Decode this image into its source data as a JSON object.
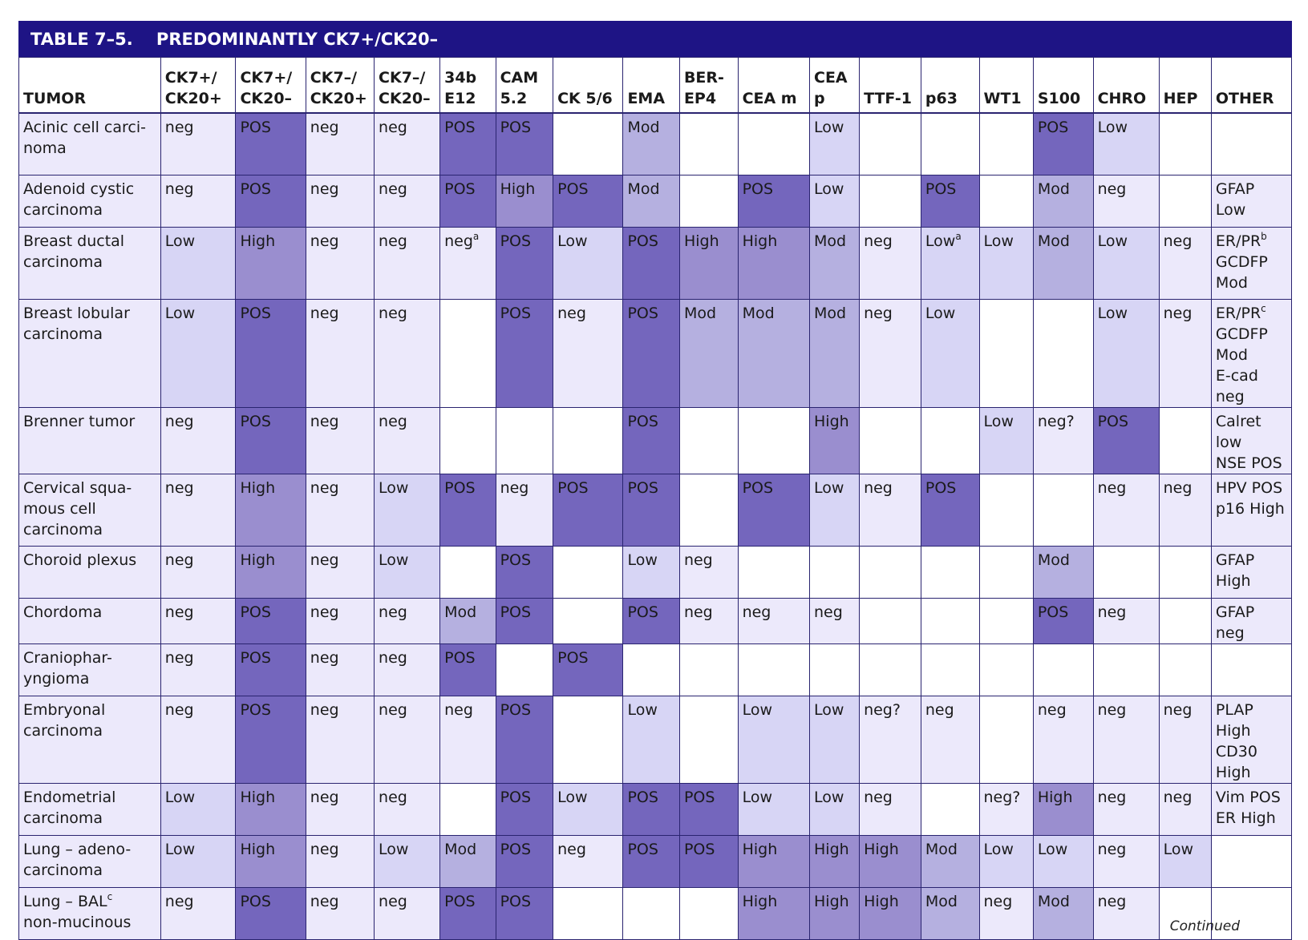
{
  "title": "TABLE 7–5.    PREDOMINANTLY CK7+/CK20–",
  "headers": [
    "TUMOR",
    "CK7+/\nCK20+",
    "CK7+/\nCK20–",
    "CK7–/\nCK20+",
    "CK7–/\nCK20–",
    "34b\nE12",
    "CAM\n5.2",
    "CK 5/6",
    "EMA",
    "BER-\nEP4",
    "CEA m",
    "CEA\np",
    "TTF-1",
    "p63",
    "WT1",
    "S100",
    "CHRO",
    "HEP",
    "OTHER"
  ],
  "rows": [
    {
      "tumor": "Acinic cell carci-\nnoma",
      "cells": [
        "neg",
        "POS",
        "neg",
        "neg",
        "POS",
        "POS",
        "",
        "Mod",
        "",
        "",
        "Low",
        "",
        "",
        "",
        "POS",
        "Low",
        ""
      ],
      "other": ""
    },
    {
      "tumor": "Adenoid cystic\ncarcinoma",
      "cells": [
        "neg",
        "POS",
        "neg",
        "neg",
        "POS",
        "High",
        "POS",
        "Mod",
        "",
        "POS",
        "Low",
        "",
        "POS",
        "",
        "Mod",
        "neg",
        ""
      ],
      "other": "GFAP Low"
    },
    {
      "tumor": "Breast ductal\ncarcinoma",
      "cells": [
        "Low",
        "High",
        "neg",
        "neg",
        "neg^a",
        "POS",
        "Low",
        "POS",
        "High",
        "High",
        "Mod",
        "neg",
        "Low^a",
        "Low",
        "Mod",
        "Low",
        "neg"
      ],
      "other": "ER/PR^b\nGCDFP\n    Mod"
    },
    {
      "tumor": "Breast lobular\ncarcinoma",
      "cells": [
        "Low",
        "POS",
        "neg",
        "neg",
        "",
        "POS",
        "neg",
        "POS",
        "Mod",
        "Mod",
        "Mod",
        "neg",
        "Low",
        "",
        "",
        "Low",
        "neg"
      ],
      "other": "ER/PR^c\nGCDFP\n    Mod\nE-cad neg"
    },
    {
      "tumor": "Brenner tumor",
      "cells": [
        "neg",
        "POS",
        "neg",
        "neg",
        "",
        "",
        "",
        "POS",
        "",
        "",
        "High",
        "",
        "",
        "Low",
        "neg?",
        "POS",
        ""
      ],
      "other": "Calret low\nNSE POS"
    },
    {
      "tumor": "Cervical squa-\nmous cell\ncarcinoma",
      "cells": [
        "neg",
        "High",
        "neg",
        "Low",
        "POS",
        "neg",
        "POS",
        "POS",
        "",
        "POS",
        "Low",
        "neg",
        "POS",
        "",
        "",
        "neg",
        "neg"
      ],
      "other": "HPV POS\np16 High"
    },
    {
      "tumor": "Choroid plexus",
      "cells": [
        "neg",
        "High",
        "neg",
        "Low",
        "",
        "POS",
        "",
        "Low",
        "neg",
        "",
        "",
        "",
        "",
        "",
        "Mod",
        "",
        ""
      ],
      "other": "GFAP\n    High"
    },
    {
      "tumor": "Chordoma",
      "cells": [
        "neg",
        "POS",
        "neg",
        "neg",
        "Mod",
        "POS",
        "",
        "POS",
        "neg",
        "neg",
        "neg",
        "",
        "",
        "",
        "POS",
        "neg",
        ""
      ],
      "other": "GFAP neg"
    },
    {
      "tumor": "Craniophar-\nyngioma",
      "cells": [
        "neg",
        "POS",
        "neg",
        "neg",
        "POS",
        "",
        "POS",
        "",
        "",
        "",
        "",
        "",
        "",
        "",
        "",
        "",
        ""
      ],
      "other": ""
    },
    {
      "tumor": "Embryonal\ncarcinoma",
      "cells": [
        "neg",
        "POS",
        "neg",
        "neg",
        "neg",
        "POS",
        "",
        "Low",
        "",
        "Low",
        "Low",
        "neg?",
        "neg",
        "",
        "neg",
        "neg",
        "neg"
      ],
      "other": "PLAP High\nCD30\n    High"
    },
    {
      "tumor": "Endometrial\ncarcinoma",
      "cells": [
        "Low",
        "High",
        "neg",
        "neg",
        "",
        "POS",
        "Low",
        "POS",
        "POS",
        "Low",
        "Low",
        "neg",
        "",
        "neg?",
        "High",
        "neg",
        "neg"
      ],
      "other": "Vim POS\nER High"
    },
    {
      "tumor": "Lung – adeno-\ncarcinoma",
      "cells": [
        "Low",
        "High",
        "neg",
        "Low",
        "Mod",
        "POS",
        "neg",
        "POS",
        "POS",
        "High",
        "High",
        "High",
        "Mod",
        "Low",
        "Low",
        "neg",
        "Low"
      ],
      "other": ""
    },
    {
      "tumor": "Lung – BAL^c\nnon-mucinous",
      "cells": [
        "neg",
        "POS",
        "neg",
        "neg",
        "POS",
        "POS",
        "",
        "",
        "",
        "High",
        "High",
        "High",
        "Mod",
        "neg",
        "Mod",
        "neg",
        ""
      ],
      "other": ""
    }
  ],
  "footer": "Continued"
}
